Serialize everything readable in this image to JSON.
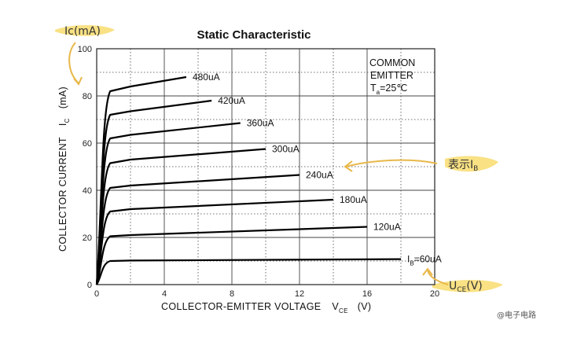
{
  "chart_data": {
    "type": "line",
    "title": "Static Characteristic",
    "xlabel": "COLLECTOR-EMITTER VOLTAGE",
    "xlabel_symbol": "V",
    "xlabel_sub": "CE",
    "xlabel_unit": "(V)",
    "ylabel": "COLLECTOR CURRENT",
    "ylabel_symbol": "I",
    "ylabel_sub": "C",
    "ylabel_unit": "(mA)",
    "xlim": [
      0,
      20
    ],
    "ylim": [
      0,
      100
    ],
    "x_ticks": [
      "0",
      "4",
      "8",
      "12",
      "16",
      "20"
    ],
    "y_ticks": [
      "0",
      "20",
      "40",
      "60",
      "80",
      "100"
    ],
    "grid": true,
    "annotation": {
      "line1": "COMMON",
      "line2": "EMITTER",
      "line3_pre": "T",
      "line3_sub": "a",
      "line3_post": "=25℃"
    },
    "series": [
      {
        "name": "60uA",
        "label_pre": "I",
        "label_sub": "B",
        "label_post": "=60uA",
        "x": [
          0,
          0.3,
          0.8,
          2,
          18
        ],
        "y": [
          0,
          9,
          10,
          10.2,
          10.8
        ]
      },
      {
        "name": "120uA",
        "label": "120uA",
        "x": [
          0,
          0.3,
          0.8,
          2,
          16
        ],
        "y": [
          0,
          18,
          20.5,
          21,
          24.5
        ]
      },
      {
        "name": "180uA",
        "label": "180uA",
        "x": [
          0,
          0.3,
          0.8,
          2,
          14
        ],
        "y": [
          0,
          28,
          31,
          32,
          36
        ]
      },
      {
        "name": "240uA",
        "label": "240uA",
        "x": [
          0,
          0.3,
          0.8,
          2,
          12
        ],
        "y": [
          0,
          37,
          41,
          42,
          46.5
        ]
      },
      {
        "name": "300uA",
        "label": "300uA",
        "x": [
          0,
          0.3,
          0.8,
          2,
          10
        ],
        "y": [
          0,
          47,
          51.5,
          53,
          57.5
        ]
      },
      {
        "name": "360uA",
        "label": "360uA",
        "x": [
          0,
          0.3,
          0.8,
          2,
          8.5
        ],
        "y": [
          0,
          57,
          62,
          63.5,
          68.5
        ]
      },
      {
        "name": "420uA",
        "label": "420uA",
        "x": [
          0,
          0.3,
          0.8,
          2,
          6.8
        ],
        "y": [
          0,
          66,
          72,
          73.5,
          78
        ]
      },
      {
        "name": "480uA",
        "label": "480uA",
        "x": [
          0,
          0.3,
          0.8,
          2,
          5.3
        ],
        "y": [
          0,
          75,
          82,
          84,
          88
        ]
      }
    ]
  },
  "annotations": {
    "ic_label": "Ic(mA)",
    "ib_note": "表示I",
    "ib_note_sub": "B",
    "vce_label": "U",
    "vce_label_sub": "CE",
    "vce_label_unit": "(V)",
    "watermark": "@电子电路"
  },
  "colors": {
    "highlight": "#f8dc6e",
    "arrow": "#e8b84a",
    "curve": "#000000",
    "grid": "#555555"
  }
}
